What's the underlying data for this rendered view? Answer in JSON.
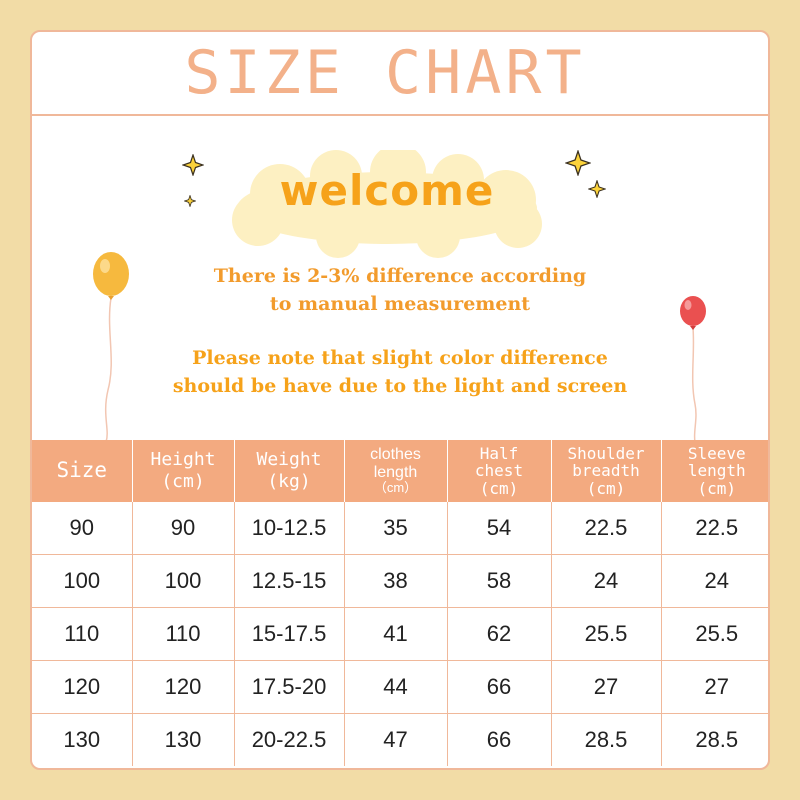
{
  "title": "SIZE CHART",
  "welcome": "welcome",
  "notes": {
    "line1": "There is 2-3% difference according",
    "line2": "to manual measurement",
    "line3": "Please note that slight color difference",
    "line4": "should be have due to the light and screen"
  },
  "table": {
    "headers": {
      "size": "Size",
      "height": "Height",
      "height_unit": "(cm)",
      "weight": "Weight",
      "weight_unit": "(kg)",
      "clothes_length_1": "clothes",
      "clothes_length_2": "length",
      "clothes_length_unit": "（cm）",
      "half_chest_1": "Half",
      "half_chest_2": "chest",
      "half_chest_unit": "(cm)",
      "shoulder_1": "Shoulder",
      "shoulder_2": "breadth",
      "shoulder_unit": "(cm)",
      "sleeve_1": "Sleeve",
      "sleeve_2": "length",
      "sleeve_unit": "(cm)"
    },
    "rows": [
      [
        "90",
        "90",
        "10-12.5",
        "35",
        "54",
        "22.5",
        "22.5"
      ],
      [
        "100",
        "100",
        "12.5-15",
        "38",
        "58",
        "24",
        "24"
      ],
      [
        "110",
        "110",
        "15-17.5",
        "41",
        "62",
        "25.5",
        "25.5"
      ],
      [
        "120",
        "120",
        "17.5-20",
        "44",
        "66",
        "27",
        "27"
      ],
      [
        "130",
        "130",
        "20-22.5",
        "47",
        "66",
        "28.5",
        "28.5"
      ]
    ]
  },
  "colors": {
    "background": "#f2dca6",
    "accent": "#f3aa80",
    "title": "#f3b18a",
    "welcome": "#f6a21a",
    "note": "#f29b2c"
  },
  "icons": [
    "sparkle-icon",
    "orange-balloon-icon",
    "red-balloon-icon",
    "cloud-shape"
  ]
}
